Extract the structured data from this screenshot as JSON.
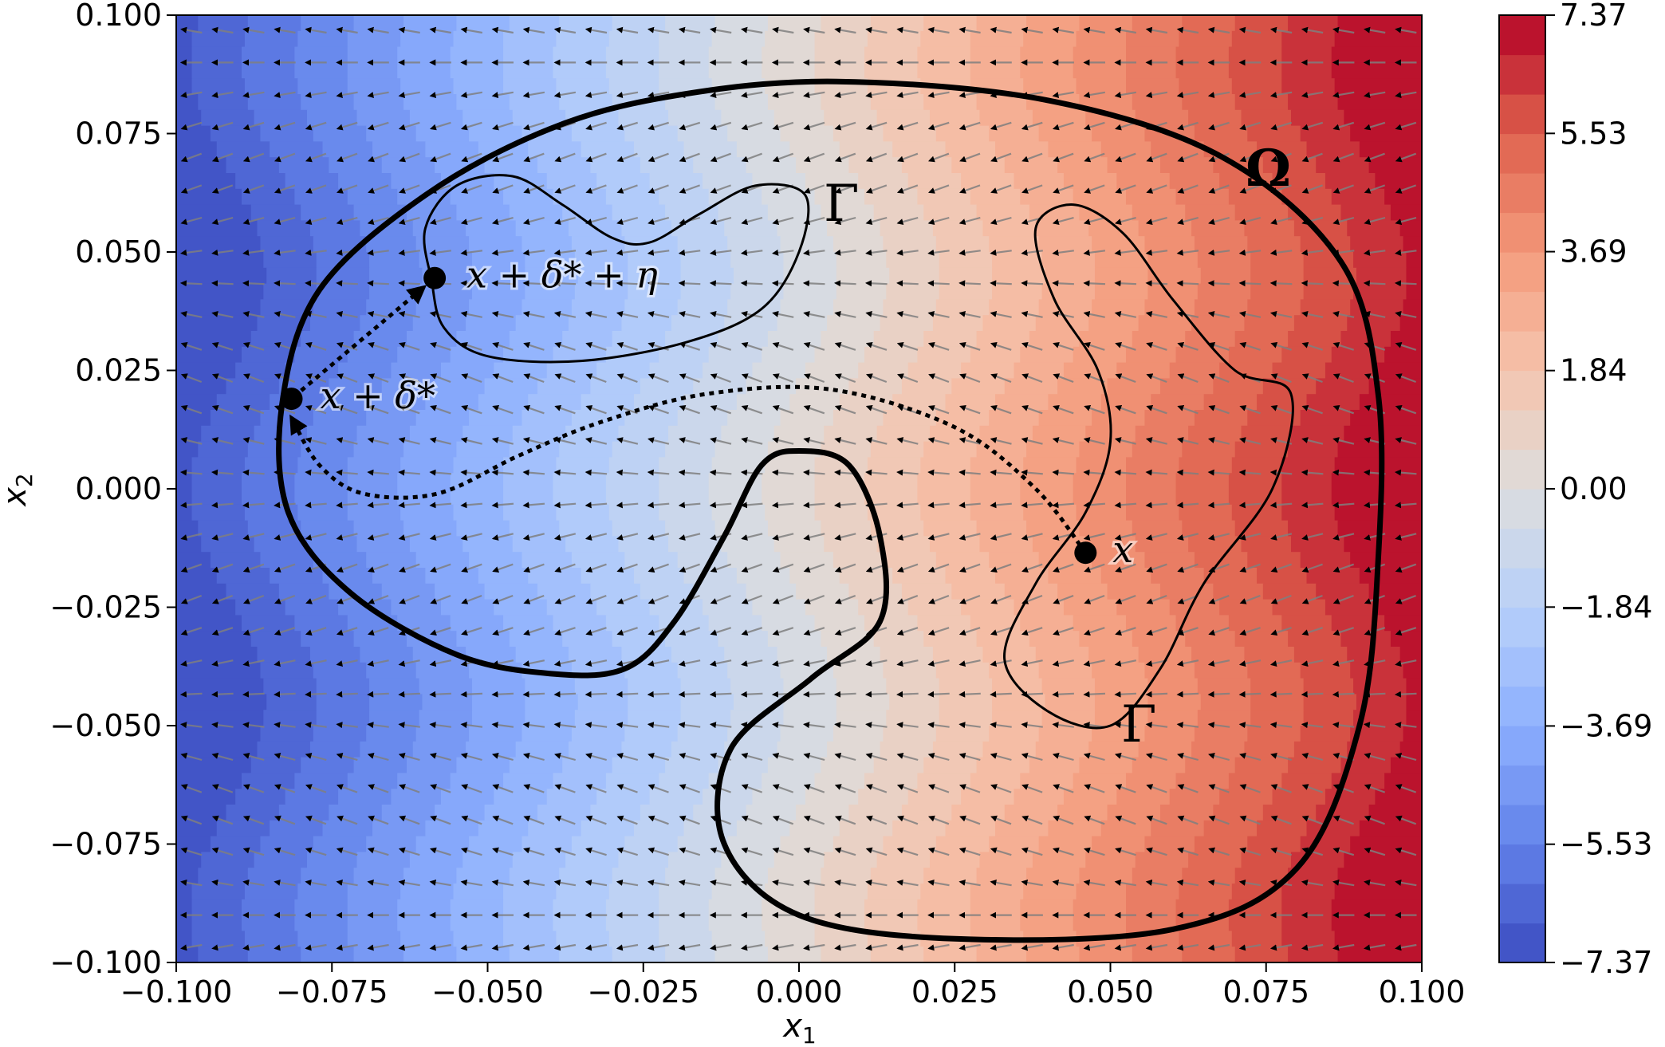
{
  "chart_data": {
    "type": "heatmap",
    "subtype": "filled contour with quiver field and annotated curves",
    "title": "",
    "xlabel_base": "x",
    "xlabel_sub": "1",
    "ylabel_base": "x",
    "ylabel_sub": "2",
    "xlim": [
      -0.1,
      0.1
    ],
    "ylim": [
      -0.1,
      0.1
    ],
    "x_ticks": [
      -0.1,
      -0.075,
      -0.05,
      -0.025,
      0.0,
      0.025,
      0.05,
      0.075,
      0.1
    ],
    "y_ticks": [
      -0.1,
      -0.075,
      -0.05,
      -0.025,
      0.0,
      0.025,
      0.05,
      0.075,
      0.1
    ],
    "x_tick_labels": [
      "−0.100",
      "−0.075",
      "−0.050",
      "−0.025",
      "0.000",
      "0.025",
      "0.050",
      "0.075",
      "0.100"
    ],
    "y_tick_labels": [
      "−0.100",
      "−0.075",
      "−0.050",
      "−0.025",
      "0.000",
      "0.025",
      "0.050",
      "0.075",
      "0.100"
    ],
    "colorbar": {
      "colormap": "coolwarm",
      "vmin": -7.37,
      "vmax": 7.37,
      "levels": 24,
      "ticks": [
        -7.37,
        -5.53,
        -3.69,
        -1.84,
        0.0,
        1.84,
        3.69,
        5.53,
        7.37
      ],
      "tick_labels": [
        "−7.37",
        "−5.53",
        "−3.69",
        "−1.84",
        "0.00",
        "1.84",
        "3.69",
        "5.53",
        "7.37"
      ]
    },
    "field": {
      "description_for_rendering_only": "scalar approximated as linear in x1 with slight wave in x2",
      "scale": 73.7,
      "wave_amplitude": 0.006,
      "wave_period": 0.09
    },
    "quiver": {
      "color": "#7f7f7f",
      "nx": 40,
      "ny": 30,
      "direction": "pointing left"
    },
    "points": [
      {
        "name": "x",
        "x": 0.046,
        "y": -0.0135,
        "label": "x"
      },
      {
        "name": "x-plus-delta",
        "x": -0.0815,
        "y": 0.019,
        "label": "x + δ*"
      },
      {
        "name": "x-plus-delta-plus-eta",
        "x": -0.0585,
        "y": 0.0445,
        "label": "x + δ* + η"
      }
    ],
    "region_labels": [
      {
        "name": "omega",
        "text": "Ω"
      },
      {
        "name": "gamma-upper",
        "text": "Γ"
      },
      {
        "name": "gamma-lower",
        "text": "Γ"
      }
    ],
    "curves": {
      "omega": [
        [
          0.006,
          0.086
        ],
        [
          0.04,
          0.082
        ],
        [
          0.068,
          0.07
        ],
        [
          0.087,
          0.048
        ],
        [
          0.093,
          0.02
        ],
        [
          0.093,
          -0.015
        ],
        [
          0.09,
          -0.05
        ],
        [
          0.08,
          -0.08
        ],
        [
          0.06,
          -0.093
        ],
        [
          0.025,
          -0.095
        ],
        [
          0.0,
          -0.09
        ],
        [
          -0.012,
          -0.075
        ],
        [
          -0.011,
          -0.055
        ],
        [
          0.002,
          -0.04
        ],
        [
          0.013,
          -0.028
        ],
        [
          0.013,
          -0.01
        ],
        [
          0.008,
          0.005
        ],
        [
          0.0,
          0.008
        ],
        [
          -0.006,
          0.005
        ],
        [
          -0.012,
          -0.01
        ],
        [
          -0.02,
          -0.028
        ],
        [
          -0.028,
          -0.038
        ],
        [
          -0.04,
          -0.039
        ],
        [
          -0.055,
          -0.035
        ],
        [
          -0.072,
          -0.022
        ],
        [
          -0.082,
          -0.005
        ],
        [
          -0.083,
          0.018
        ],
        [
          -0.077,
          0.042
        ],
        [
          -0.06,
          0.062
        ],
        [
          -0.04,
          0.076
        ],
        [
          -0.02,
          0.083
        ],
        [
          0.006,
          0.086
        ]
      ],
      "gamma_upper": [
        [
          -0.059,
          0.044
        ],
        [
          -0.06,
          0.055
        ],
        [
          -0.055,
          0.064
        ],
        [
          -0.046,
          0.066
        ],
        [
          -0.038,
          0.06
        ],
        [
          -0.03,
          0.053
        ],
        [
          -0.024,
          0.052
        ],
        [
          -0.016,
          0.058
        ],
        [
          -0.007,
          0.064
        ],
        [
          0.001,
          0.062
        ],
        [
          0.0,
          0.05
        ],
        [
          -0.006,
          0.038
        ],
        [
          -0.018,
          0.031
        ],
        [
          -0.035,
          0.027
        ],
        [
          -0.05,
          0.028
        ],
        [
          -0.057,
          0.034
        ],
        [
          -0.059,
          0.044
        ]
      ],
      "gamma_lower": [
        [
          0.038,
          0.055
        ],
        [
          0.044,
          0.06
        ],
        [
          0.052,
          0.054
        ],
        [
          0.06,
          0.04
        ],
        [
          0.07,
          0.025
        ],
        [
          0.079,
          0.02
        ],
        [
          0.076,
          0.0
        ],
        [
          0.065,
          -0.02
        ],
        [
          0.058,
          -0.038
        ],
        [
          0.05,
          -0.05
        ],
        [
          0.04,
          -0.047
        ],
        [
          0.033,
          -0.036
        ],
        [
          0.038,
          -0.02
        ],
        [
          0.046,
          -0.005
        ],
        [
          0.05,
          0.01
        ],
        [
          0.048,
          0.025
        ],
        [
          0.041,
          0.04
        ],
        [
          0.038,
          0.055
        ]
      ],
      "path_x_to_delta": [
        [
          0.046,
          -0.0135
        ],
        [
          0.038,
          0.0
        ],
        [
          0.025,
          0.013
        ],
        [
          0.005,
          0.021
        ],
        [
          -0.015,
          0.02
        ],
        [
          -0.032,
          0.014
        ],
        [
          -0.045,
          0.007
        ],
        [
          -0.058,
          -0.001
        ],
        [
          -0.07,
          -0.001
        ],
        [
          -0.077,
          0.005
        ],
        [
          -0.0815,
          0.015
        ]
      ],
      "path_delta_to_eta": [
        [
          -0.0815,
          0.019
        ],
        [
          -0.0585,
          0.0445
        ]
      ]
    }
  }
}
